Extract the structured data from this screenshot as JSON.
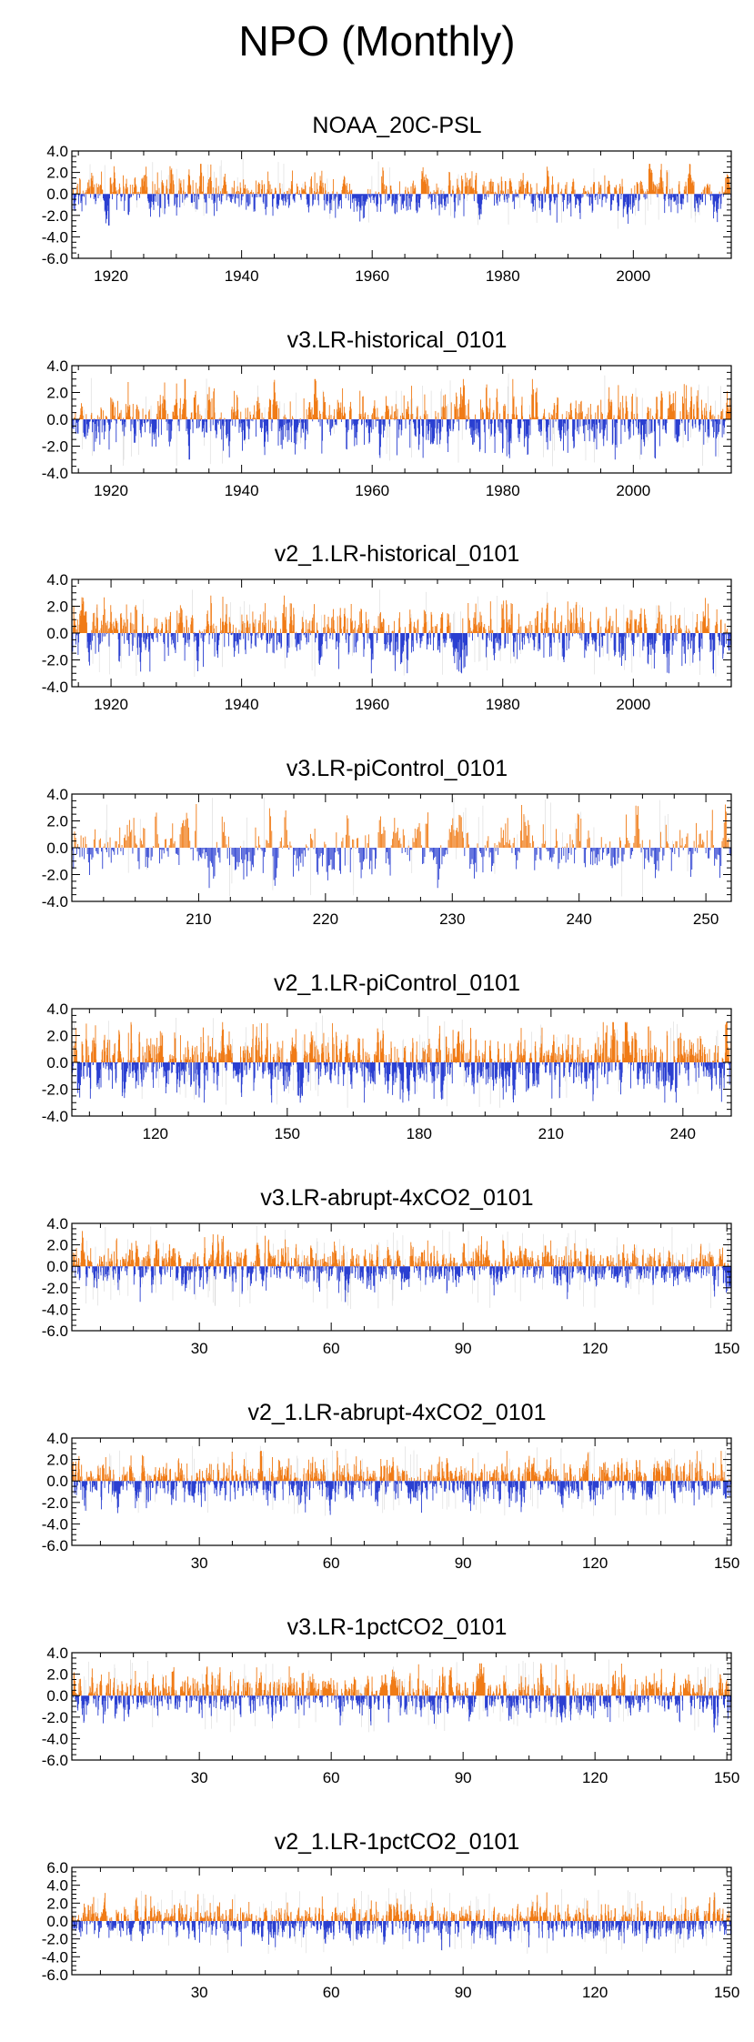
{
  "page_title": "NPO (Monthly)",
  "colors": {
    "positive": "#f07b16",
    "negative": "#2a3fd1",
    "missing": "#d8d8d8",
    "axis": "#000000"
  },
  "chart_data": [
    {
      "type": "bar",
      "title": "NOAA_20C-PSL",
      "xlim": [
        1914,
        2015
      ],
      "ylim": [
        -6,
        4
      ],
      "yticks": [
        4,
        2,
        0,
        -2,
        -4,
        -6
      ],
      "ytick_labels": [
        "4.0",
        "2.0",
        "0.0",
        "-2.0",
        "-4.0",
        "-6.0"
      ],
      "xticks": [
        1920,
        1940,
        1960,
        1980,
        2000
      ],
      "xtick_labels": [
        "1920",
        "1940",
        "1960",
        "1980",
        "2000"
      ],
      "n_months": 1212,
      "amplitude": 0.85,
      "peak_pos": 2.8,
      "peak_neg": -4.0
    },
    {
      "type": "bar",
      "title": "v3.LR-historical_0101",
      "xlim": [
        1914,
        2015
      ],
      "ylim": [
        -4,
        4
      ],
      "yticks": [
        4,
        2,
        0,
        -2,
        -4
      ],
      "ytick_labels": [
        "4.0",
        "2.0",
        "0.0",
        "-2.0",
        "-4.0"
      ],
      "xticks": [
        1920,
        1940,
        1960,
        1980,
        2000
      ],
      "xtick_labels": [
        "1920",
        "1940",
        "1960",
        "1980",
        "2000"
      ],
      "n_months": 1212,
      "amplitude": 0.95,
      "peak_pos": 3.0,
      "peak_neg": -3.0
    },
    {
      "type": "bar",
      "title": "v2_1.LR-historical_0101",
      "xlim": [
        1914,
        2015
      ],
      "ylim": [
        -4,
        4
      ],
      "yticks": [
        4,
        2,
        0,
        -2,
        -4
      ],
      "ytick_labels": [
        "4.0",
        "2.0",
        "0.0",
        "-2.0",
        "-4.0"
      ],
      "xticks": [
        1920,
        1940,
        1960,
        1980,
        2000
      ],
      "xtick_labels": [
        "1920",
        "1940",
        "1960",
        "1980",
        "2000"
      ],
      "n_months": 1212,
      "amplitude": 0.95,
      "peak_pos": 2.8,
      "peak_neg": -3.0
    },
    {
      "type": "bar",
      "title": "v3.LR-piControl_0101",
      "xlim": [
        200,
        252
      ],
      "ylim": [
        -4,
        4
      ],
      "yticks": [
        4,
        2,
        0,
        -2,
        -4
      ],
      "ytick_labels": [
        "4.0",
        "2.0",
        "0.0",
        "-2.0",
        "-4.0"
      ],
      "xticks": [
        210,
        220,
        230,
        240,
        250
      ],
      "xtick_labels": [
        "210",
        "220",
        "230",
        "240",
        "250"
      ],
      "n_months": 612,
      "amplitude": 0.95,
      "peak_pos": 3.3,
      "peak_neg": -3.0
    },
    {
      "type": "bar",
      "title": "v2_1.LR-piControl_0101",
      "xlim": [
        101,
        251
      ],
      "ylim": [
        -4,
        4
      ],
      "yticks": [
        4,
        2,
        0,
        -2,
        -4
      ],
      "ytick_labels": [
        "4.0",
        "2.0",
        "0.0",
        "-2.0",
        "-4.0"
      ],
      "xticks": [
        120,
        150,
        180,
        210,
        240
      ],
      "xtick_labels": [
        "120",
        "150",
        "180",
        "210",
        "240"
      ],
      "n_months": 1800,
      "amplitude": 0.95,
      "peak_pos": 3.0,
      "peak_neg": -3.0
    },
    {
      "type": "bar",
      "title": "v3.LR-abrupt-4xCO2_0101",
      "xlim": [
        1,
        151
      ],
      "ylim": [
        -6,
        4
      ],
      "yticks": [
        4,
        2,
        0,
        -2,
        -4,
        -6
      ],
      "ytick_labels": [
        "4.0",
        "2.0",
        "0.0",
        "-2.0",
        "-4.0",
        "-6.0"
      ],
      "xticks": [
        30,
        60,
        90,
        120,
        150
      ],
      "xtick_labels": [
        "30",
        "60",
        "90",
        "120",
        "150"
      ],
      "n_months": 1800,
      "amplitude": 0.85,
      "peak_pos": 3.5,
      "peak_neg": -4.5
    },
    {
      "type": "bar",
      "title": "v2_1.LR-abrupt-4xCO2_0101",
      "xlim": [
        1,
        151
      ],
      "ylim": [
        -6,
        4
      ],
      "yticks": [
        4,
        2,
        0,
        -2,
        -4,
        -6
      ],
      "ytick_labels": [
        "4.0",
        "2.0",
        "0.0",
        "-2.0",
        "-4.0",
        "-6.0"
      ],
      "xticks": [
        30,
        60,
        90,
        120,
        150
      ],
      "xtick_labels": [
        "30",
        "60",
        "90",
        "120",
        "150"
      ],
      "n_months": 1800,
      "amplitude": 0.85,
      "peak_pos": 2.8,
      "peak_neg": -3.5
    },
    {
      "type": "bar",
      "title": "v3.LR-1pctCO2_0101",
      "xlim": [
        1,
        151
      ],
      "ylim": [
        -6,
        4
      ],
      "yticks": [
        4,
        2,
        0,
        -2,
        -4,
        -6
      ],
      "ytick_labels": [
        "4.0",
        "2.0",
        "0.0",
        "-2.0",
        "-4.0",
        "-6.0"
      ],
      "xticks": [
        30,
        60,
        90,
        120,
        150
      ],
      "xtick_labels": [
        "30",
        "60",
        "90",
        "120",
        "150"
      ],
      "n_months": 1800,
      "amplitude": 0.85,
      "peak_pos": 3.0,
      "peak_neg": -4.0
    },
    {
      "type": "bar",
      "title": "v2_1.LR-1pctCO2_0101",
      "xlim": [
        1,
        151
      ],
      "ylim": [
        -6,
        6
      ],
      "yticks": [
        6,
        4,
        2,
        0,
        -2,
        -4,
        -6
      ],
      "ytick_labels": [
        "6.0",
        "4.0",
        "2.0",
        "0.0",
        "-2.0",
        "-4.0",
        "-6.0"
      ],
      "xticks": [
        30,
        60,
        90,
        120,
        150
      ],
      "xtick_labels": [
        "30",
        "60",
        "90",
        "120",
        "150"
      ],
      "n_months": 1800,
      "amplitude": 0.85,
      "peak_pos": 3.2,
      "peak_neg": -3.8
    }
  ]
}
